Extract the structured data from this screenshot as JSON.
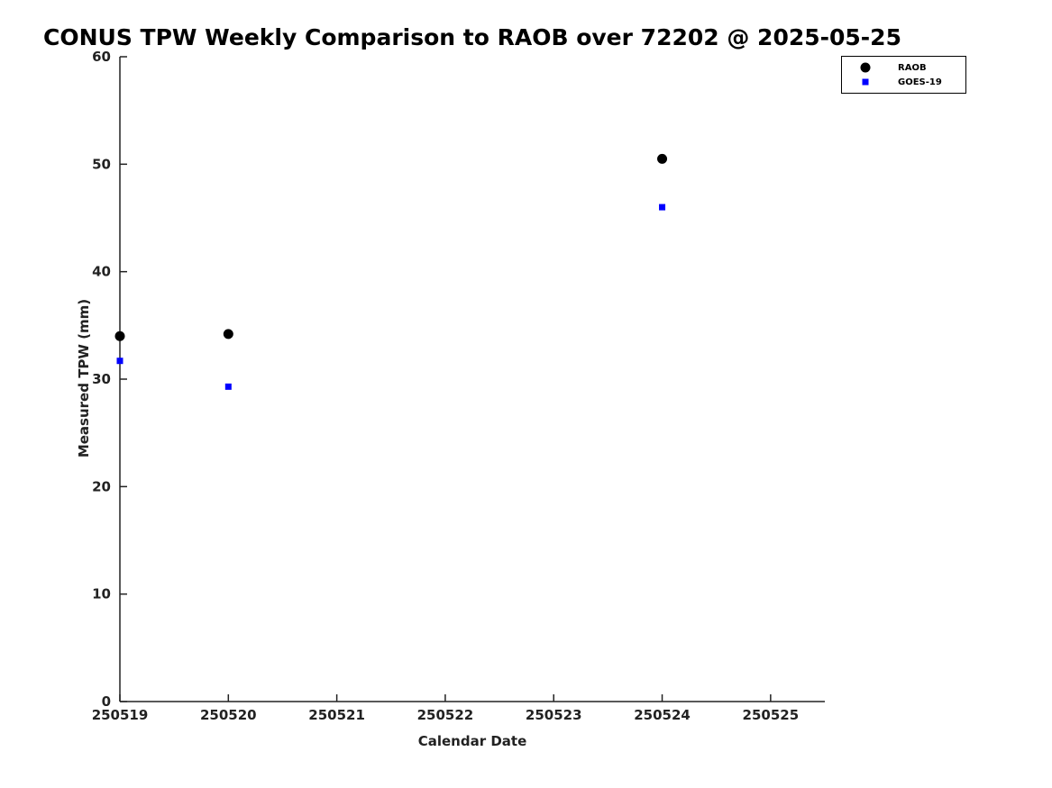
{
  "chart_data": {
    "type": "scatter",
    "title": "CONUS TPW Weekly Comparison to RAOB over 72202 @ 2025-05-25",
    "xlabel": "Calendar Date",
    "ylabel": "Measured TPW (mm)",
    "x_ticklabels": [
      "250519",
      "250520",
      "250521",
      "250522",
      "250523",
      "250524",
      "250525"
    ],
    "x_range_days": [
      0,
      6.5
    ],
    "ylim": [
      0,
      60
    ],
    "y_ticks": [
      0,
      10,
      20,
      30,
      40,
      50,
      60
    ],
    "grid": false,
    "legend_position": "outside-top-right",
    "series": [
      {
        "name": "RAOB",
        "marker": "circle",
        "color": "#000000",
        "points": [
          {
            "date": "250519",
            "value": 34.0
          },
          {
            "date": "250520",
            "value": 34.2
          },
          {
            "date": "250524",
            "value": 50.5
          }
        ]
      },
      {
        "name": "GOES-19",
        "marker": "square",
        "color": "#0000ff",
        "points": [
          {
            "date": "250519",
            "value": 31.7
          },
          {
            "date": "250520",
            "value": 29.3
          },
          {
            "date": "250524",
            "value": 46.0
          }
        ]
      }
    ]
  }
}
